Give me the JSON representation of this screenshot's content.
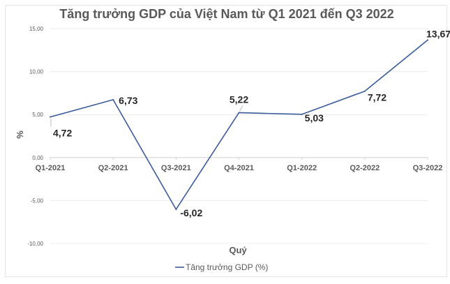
{
  "chart_data": {
    "type": "line",
    "title": "Tăng trưởng GDP của Việt Nam từ Q1 2021 đến Q3 2022",
    "xlabel": "Quý",
    "ylabel": "%",
    "categories": [
      "Q1-2021",
      "Q2-2021",
      "Q3-2021",
      "Q4-2021",
      "Q1-2022",
      "Q2-2022",
      "Q3-2022"
    ],
    "series": [
      {
        "name": "Tăng trưởng GDP (%)",
        "values": [
          4.72,
          6.73,
          -6.02,
          5.22,
          5.03,
          7.72,
          13.67
        ],
        "labels": [
          "4,72",
          "6,73",
          "-6,02",
          "5,22",
          "5,03",
          "7,72",
          "13,67"
        ],
        "color": "#3a5a9a"
      }
    ],
    "ylim": [
      -10,
      15
    ],
    "yticks": [
      15,
      10,
      5,
      0,
      -5,
      -10
    ],
    "ytick_labels": [
      "15,00",
      "10,00",
      "5,00",
      "0,00",
      "-5,00",
      "-10,00"
    ],
    "grid": true,
    "legend": "bottom"
  }
}
